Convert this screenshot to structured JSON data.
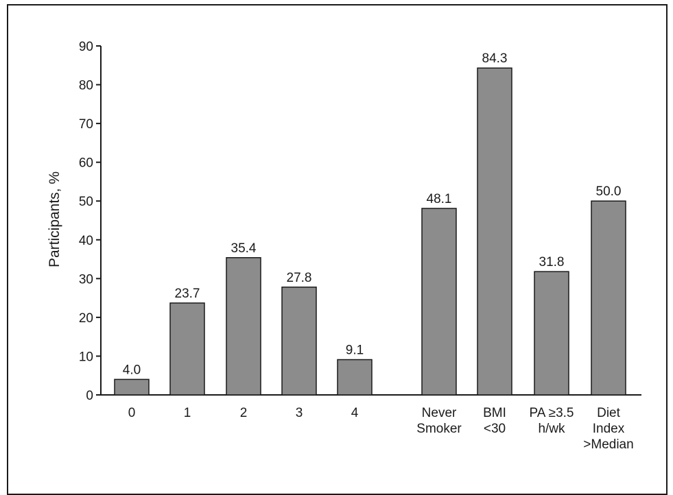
{
  "chart_data": {
    "type": "bar",
    "ylabel": "Participants, %",
    "xlabel": "",
    "ylim": [
      0,
      90
    ],
    "yticks": [
      0,
      10,
      20,
      30,
      40,
      50,
      60,
      70,
      80,
      90
    ],
    "bar_color": "#8c8c8c",
    "grid": false,
    "categories": [
      [
        "0"
      ],
      [
        "1"
      ],
      [
        "2"
      ],
      [
        "3"
      ],
      [
        "4"
      ],
      [
        "Never",
        "Smoker"
      ],
      [
        "BMI",
        "<30"
      ],
      [
        "PA ≥3.5",
        "h/wk"
      ],
      [
        "Diet",
        "Index",
        ">Median"
      ]
    ],
    "values": [
      4.0,
      23.7,
      35.4,
      27.8,
      9.1,
      48.1,
      84.3,
      31.8,
      50.0
    ],
    "value_labels": [
      "4.0",
      "23.7",
      "35.4",
      "27.8",
      "9.1",
      "48.1",
      "84.3",
      "31.8",
      "50.0"
    ]
  }
}
